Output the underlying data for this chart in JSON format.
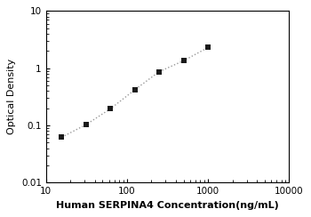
{
  "x_data": [
    15.6,
    31.25,
    62.5,
    125,
    250,
    500,
    1000
  ],
  "y_data": [
    0.062,
    0.103,
    0.195,
    0.42,
    0.87,
    1.35,
    2.3
  ],
  "xlim": [
    10,
    10000
  ],
  "ylim": [
    0.01,
    10
  ],
  "xlabel": "Human SERPINA4 Concentration(ng/mL)",
  "ylabel": "Optical Density",
  "marker": "s",
  "marker_color": "#1a1a1a",
  "line_color": "#999999",
  "line_style": ":",
  "marker_size": 5,
  "line_width": 1.0,
  "x_ticks": [
    10,
    100,
    1000,
    10000
  ],
  "x_tick_labels": [
    "10",
    "100",
    "1000",
    "10000"
  ],
  "y_ticks": [
    0.01,
    0.1,
    1,
    10
  ],
  "y_tick_labels": [
    "0.01",
    "0.1",
    "1",
    "10"
  ],
  "font_size_label": 8,
  "font_size_tick": 7.5,
  "background_color": "#ffffff"
}
